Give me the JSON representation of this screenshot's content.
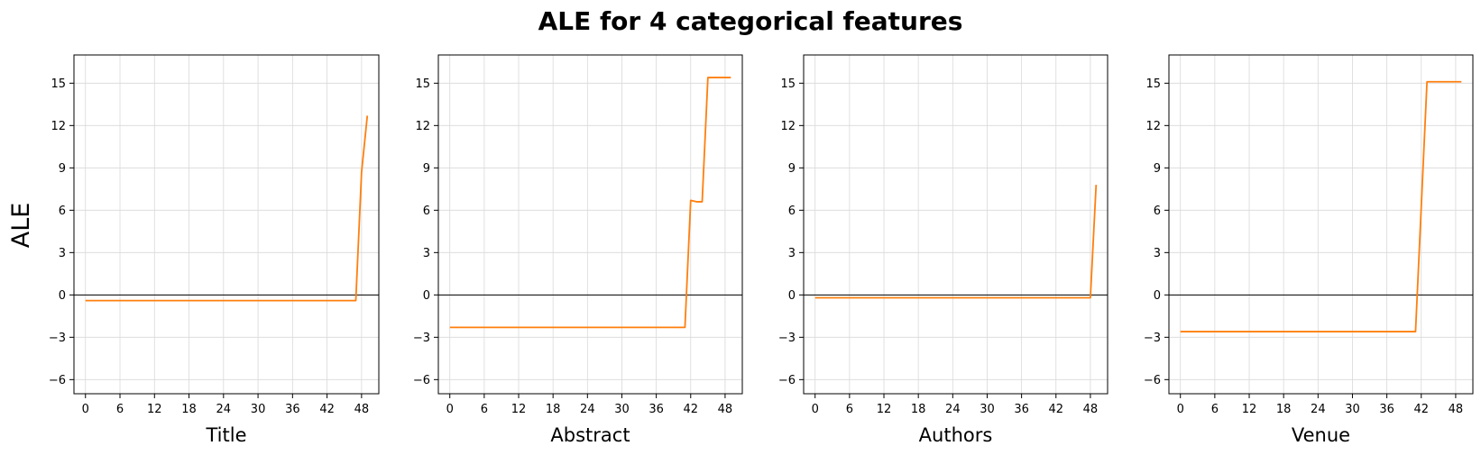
{
  "figure": {
    "title": "ALE for 4 categorical features",
    "ylabel": "ALE"
  },
  "colors": {
    "line": "#ff7f0e",
    "zero_line": "#000000",
    "grid": "#d9d9d9",
    "axes": "#000000"
  },
  "chart_data": [
    {
      "type": "line",
      "xlabel": "Title",
      "xlim": [
        -2,
        51
      ],
      "ylim": [
        -7,
        17
      ],
      "xticks": [
        0,
        6,
        12,
        18,
        24,
        30,
        36,
        42,
        48
      ],
      "yticks": [
        -6,
        -3,
        0,
        3,
        6,
        9,
        12,
        15
      ],
      "grid": true,
      "series": [
        {
          "x": [
            0,
            47,
            48,
            49
          ],
          "y": [
            -0.4,
            -0.4,
            8.7,
            12.7
          ]
        }
      ]
    },
    {
      "type": "line",
      "xlabel": "Abstract",
      "xlim": [
        -2,
        51
      ],
      "ylim": [
        -7,
        17
      ],
      "xticks": [
        0,
        6,
        12,
        18,
        24,
        30,
        36,
        42,
        48
      ],
      "yticks": [
        -6,
        -3,
        0,
        3,
        6,
        9,
        12,
        15
      ],
      "grid": true,
      "series": [
        {
          "x": [
            0,
            41,
            42,
            43,
            44,
            45,
            46,
            47,
            48,
            49
          ],
          "y": [
            -2.3,
            -2.3,
            6.7,
            6.6,
            6.6,
            15.4,
            15.4,
            15.4,
            15.4,
            15.4
          ]
        }
      ]
    },
    {
      "type": "line",
      "xlabel": "Authors",
      "xlim": [
        -2,
        51
      ],
      "ylim": [
        -7,
        17
      ],
      "xticks": [
        0,
        6,
        12,
        18,
        24,
        30,
        36,
        42,
        48
      ],
      "yticks": [
        -6,
        -3,
        0,
        3,
        6,
        9,
        12,
        15
      ],
      "grid": true,
      "series": [
        {
          "x": [
            0,
            48,
            49
          ],
          "y": [
            -0.2,
            -0.2,
            7.8
          ]
        }
      ]
    },
    {
      "type": "line",
      "xlabel": "Venue",
      "xlim": [
        -2,
        51
      ],
      "ylim": [
        -7,
        17
      ],
      "xticks": [
        0,
        6,
        12,
        18,
        24,
        30,
        36,
        42,
        48
      ],
      "yticks": [
        -6,
        -3,
        0,
        3,
        6,
        9,
        12,
        15
      ],
      "grid": true,
      "series": [
        {
          "x": [
            0,
            41,
            43,
            44,
            45,
            46,
            47,
            48,
            49
          ],
          "y": [
            -2.6,
            -2.6,
            15.1,
            15.1,
            15.1,
            15.1,
            15.1,
            15.1,
            15.1
          ]
        }
      ]
    }
  ]
}
